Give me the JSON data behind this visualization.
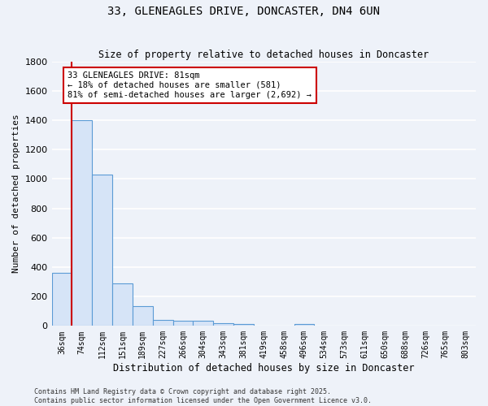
{
  "title": "33, GLENEAGLES DRIVE, DONCASTER, DN4 6UN",
  "subtitle": "Size of property relative to detached houses in Doncaster",
  "xlabel": "Distribution of detached houses by size in Doncaster",
  "ylabel": "Number of detached properties",
  "bar_labels": [
    "36sqm",
    "74sqm",
    "112sqm",
    "151sqm",
    "189sqm",
    "227sqm",
    "266sqm",
    "304sqm",
    "343sqm",
    "381sqm",
    "419sqm",
    "458sqm",
    "496sqm",
    "534sqm",
    "573sqm",
    "611sqm",
    "650sqm",
    "688sqm",
    "726sqm",
    "765sqm",
    "803sqm"
  ],
  "bar_values": [
    360,
    1400,
    1030,
    290,
    135,
    40,
    35,
    35,
    20,
    15,
    0,
    0,
    15,
    0,
    0,
    0,
    0,
    0,
    0,
    0,
    0
  ],
  "bar_color": "#d6e4f7",
  "bar_edge_color": "#5b9bd5",
  "vline_x_index": 1,
  "vline_color": "#cc0000",
  "annotation_text": "33 GLENEAGLES DRIVE: 81sqm\n← 18% of detached houses are smaller (581)\n81% of semi-detached houses are larger (2,692) →",
  "annotation_box_facecolor": "#ffffff",
  "annotation_box_edgecolor": "#cc0000",
  "footer_line1": "Contains HM Land Registry data © Crown copyright and database right 2025.",
  "footer_line2": "Contains public sector information licensed under the Open Government Licence v3.0.",
  "bg_color": "#eef2f9",
  "grid_color": "#ffffff",
  "ylim": [
    0,
    1800
  ],
  "yticks": [
    0,
    200,
    400,
    600,
    800,
    1000,
    1200,
    1400,
    1600,
    1800
  ]
}
